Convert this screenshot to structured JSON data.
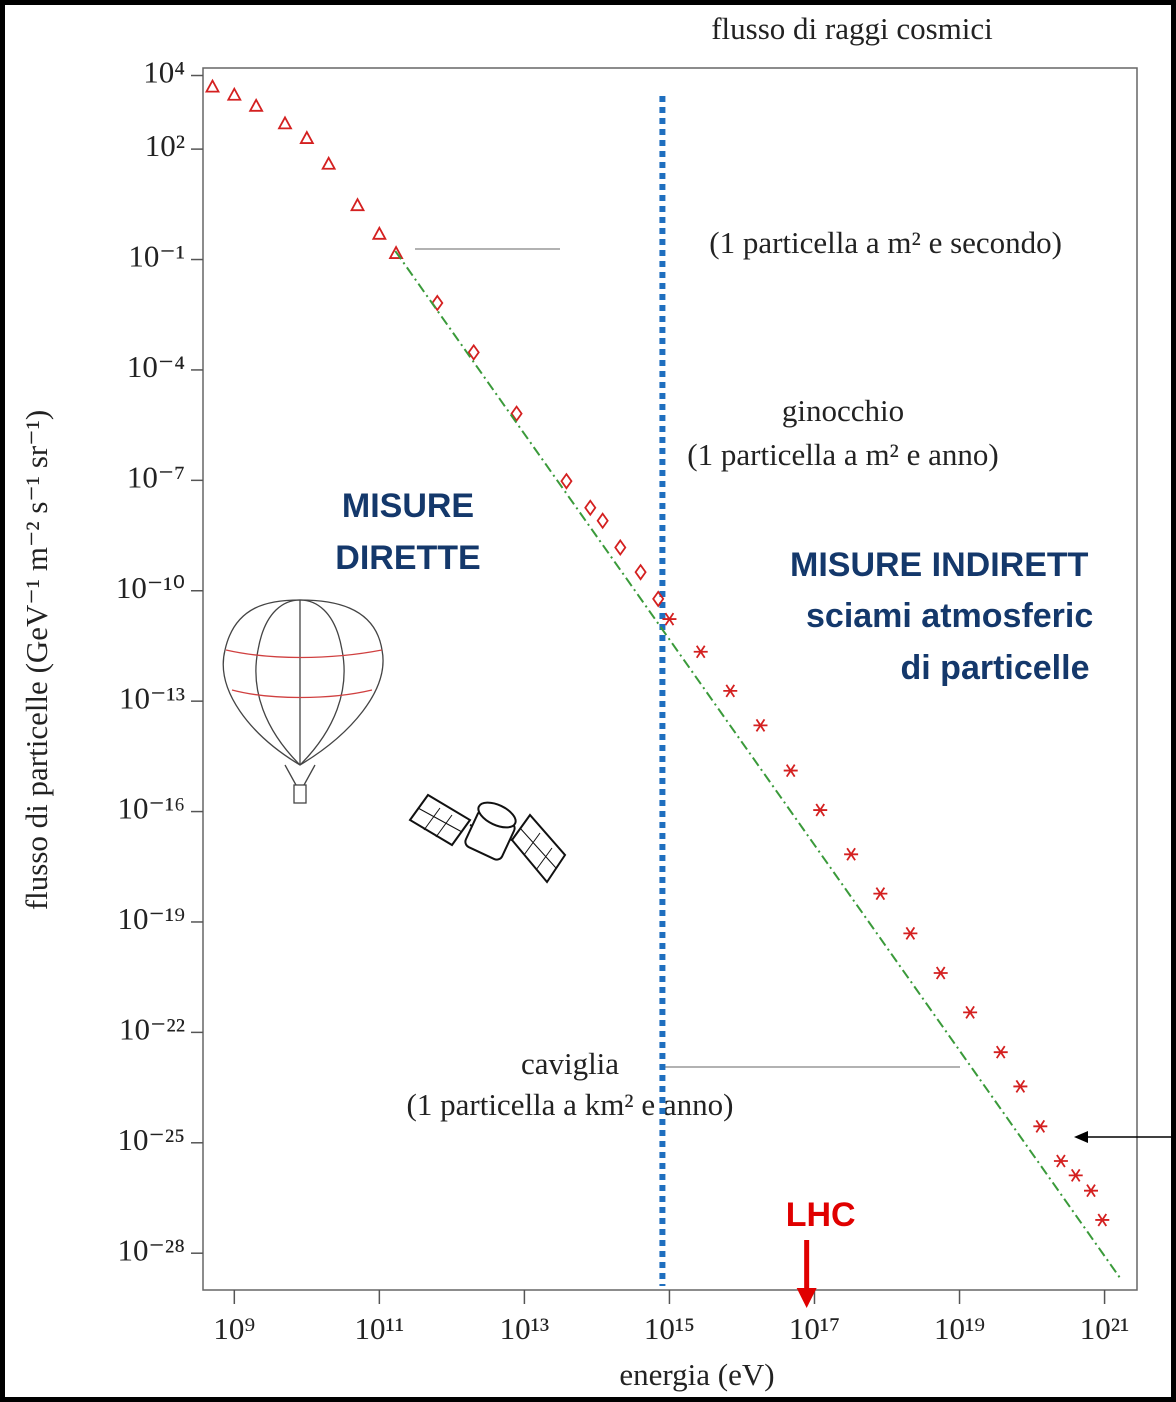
{
  "chart_data": {
    "type": "scatter",
    "title": "flusso di raggi cosmici",
    "x_label": "energia (eV)",
    "y_label": "flusso di particelle (GeV⁻¹ m⁻² s⁻¹ sr⁻¹)",
    "log_x": true,
    "log_y": true,
    "xlim": [
      370000000.0,
      2.8e+21
    ],
    "ylim": [
      1e-29,
      16000.0
    ],
    "xticks": [
      {
        "value": 1000000000.0,
        "label": "10⁹"
      },
      {
        "value": 100000000000.0,
        "label": "10¹¹"
      },
      {
        "value": 10000000000000.0,
        "label": "10¹³"
      },
      {
        "value": 1000000000000000.0,
        "label": "10¹⁵"
      },
      {
        "value": 1e+17,
        "label": "10¹⁷"
      },
      {
        "value": 1e+19,
        "label": "10¹⁹"
      },
      {
        "value": 1e+21,
        "label": "10²¹"
      }
    ],
    "yticks": [
      {
        "value": 10000.0,
        "label": "10⁴"
      },
      {
        "value": 100.0,
        "label": "10²"
      },
      {
        "value": 0.1,
        "label": "10⁻¹"
      },
      {
        "value": 0.0001,
        "label": "10⁻⁴"
      },
      {
        "value": 1e-07,
        "label": "10⁻⁷"
      },
      {
        "value": 1e-10,
        "label": "10⁻¹⁰"
      },
      {
        "value": 1e-13,
        "label": "10⁻¹³"
      },
      {
        "value": 1e-16,
        "label": "10⁻¹⁶"
      },
      {
        "value": 1e-19,
        "label": "10⁻¹⁹"
      },
      {
        "value": 1e-22,
        "label": "10⁻²²"
      },
      {
        "value": 1e-25,
        "label": "10⁻²⁵"
      },
      {
        "value": 1e-28,
        "label": "10⁻²⁸"
      }
    ],
    "series": [
      {
        "marker": "triangle",
        "color": "#d42020",
        "x": [
          500000000.0,
          1000000000.0,
          2000000000.0,
          5000000000.0,
          10000000000.0,
          20000000000.0,
          50000000000.0,
          100000000000.0,
          170000000000.0
        ],
        "values": [
          5000,
          3000,
          1500,
          500,
          200,
          40,
          3,
          0.5,
          0.15
        ]
      },
      {
        "marker": "diamond",
        "color": "#d42020",
        "x": [
          630000000000.0,
          2000000000000.0,
          7800000000000.0,
          38000000000000.0,
          81000000000000.0,
          120000000000000.0,
          210000000000000.0,
          400000000000000.0,
          700000000000000.0
        ],
        "values": [
          0.0066,
          0.0003,
          6.5e-06,
          9.5e-08,
          1.8e-08,
          8e-09,
          1.5e-09,
          3.2e-10,
          6e-11
        ]
      },
      {
        "marker": "star",
        "color": "#d42020",
        "x": [
          1000000000000000.0,
          2700000000000000.0,
          6900000000000000.0,
          1.8e+16,
          4.7e+16,
          1.2e+17,
          3.2e+17,
          8.1e+17,
          2.1e+18,
          5.5e+18,
          1.4e+19,
          3.7e+19,
          6.9e+19,
          1.3e+20,
          2.5e+20,
          4e+20,
          6.5e+20,
          9.3e+20
        ],
        "values": [
          1.7e-11,
          2.2e-12,
          1.9e-13,
          2.2e-14,
          1.3e-15,
          1.1e-16,
          6.9e-18,
          5.9e-19,
          4.9e-20,
          4.1e-21,
          3.5e-22,
          2.9e-23,
          3.4e-24,
          2.8e-25,
          3.2e-26,
          1.3e-26,
          5e-27,
          8e-28
        ]
      },
      {
        "marker": "dash-dot-line",
        "color": "#3a9a3a",
        "x": [
          166000000000.0,
          1.7e+21
        ],
        "values": [
          0.17,
          1.9e-29
        ]
      }
    ],
    "vline": {
      "x": 800000000000000.0,
      "color": "#1f6fbf"
    },
    "lhc": {
      "x": 7.8e+16,
      "text": "LHC",
      "color": "#e00000"
    },
    "annotations": [
      "(1 particella a m² e secondo)",
      "ginocchio",
      "(1 particella a m² e anno)",
      "caviglia",
      "(1 particella a km² e anno)",
      "MISURE",
      "DIRETTE",
      "MISURE INDIRETT",
      "sciami atmosferic",
      "di particelle"
    ]
  }
}
